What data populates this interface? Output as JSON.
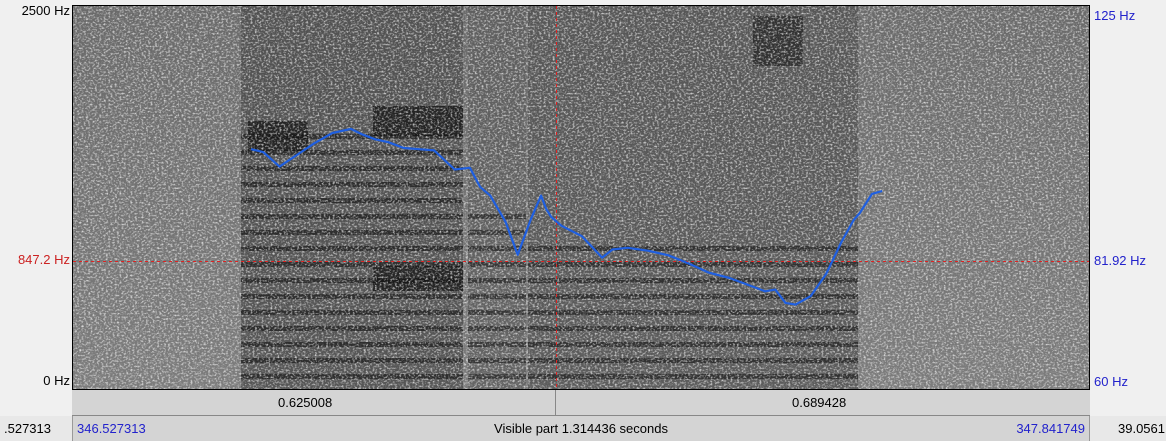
{
  "freq_axis": {
    "top_label": "2500 Hz",
    "bottom_label": "0 Hz",
    "cursor_label": "847.2 Hz"
  },
  "pitch_axis": {
    "top_label": "125 Hz",
    "bottom_label": "60 Hz",
    "cursor_label": "81.92 Hz"
  },
  "time_bar": {
    "left_value": "0.625008",
    "right_value": "0.689428"
  },
  "status_bar": {
    "far_left": ".527313",
    "start_time": "346.527313",
    "visible_part": "Visible part 1.314436 seconds",
    "end_time": "347.841749",
    "far_right": "39.0561"
  },
  "colors": {
    "pitch_line": "#1f5fe0",
    "cursor": "#dd2222",
    "right_axis_text": "#2222cc"
  },
  "chart_data": {
    "type": "line",
    "title": "",
    "xlabel": "",
    "ylabel": "",
    "ylim": [
      60,
      125
    ],
    "series": [
      {
        "x": [
          0.0,
          0.012,
          0.028,
          0.045,
          0.062,
          0.08,
          0.098,
          0.11,
          0.122,
          0.135,
          0.15,
          0.165,
          0.18,
          0.2,
          0.215,
          0.225,
          0.235,
          0.25,
          0.262,
          0.275,
          0.285,
          0.29,
          0.295,
          0.305,
          0.325,
          0.345,
          0.355,
          0.37,
          0.39,
          0.41,
          0.43,
          0.45,
          0.47,
          0.49,
          0.505,
          0.515,
          0.525,
          0.535,
          0.55,
          0.565,
          0.58,
          0.592,
          0.598,
          0.61,
          0.62
        ],
        "values": [
          101,
          100.5,
          98,
          100,
          102,
          103.8,
          104.5,
          103.5,
          102.7,
          102.2,
          101.2,
          101,
          100.8,
          97.5,
          97.8,
          94.5,
          93,
          88.5,
          82.8,
          89,
          93,
          90.7,
          89.3,
          87.8,
          86,
          82.3,
          83.7,
          84,
          83.5,
          82.7,
          81.3,
          79.7,
          78.8,
          77.5,
          76.5,
          76.8,
          74.5,
          74.2,
          75.7,
          79.5,
          85,
          88.8,
          90,
          93.3,
          93.8
        ]
      }
    ]
  }
}
